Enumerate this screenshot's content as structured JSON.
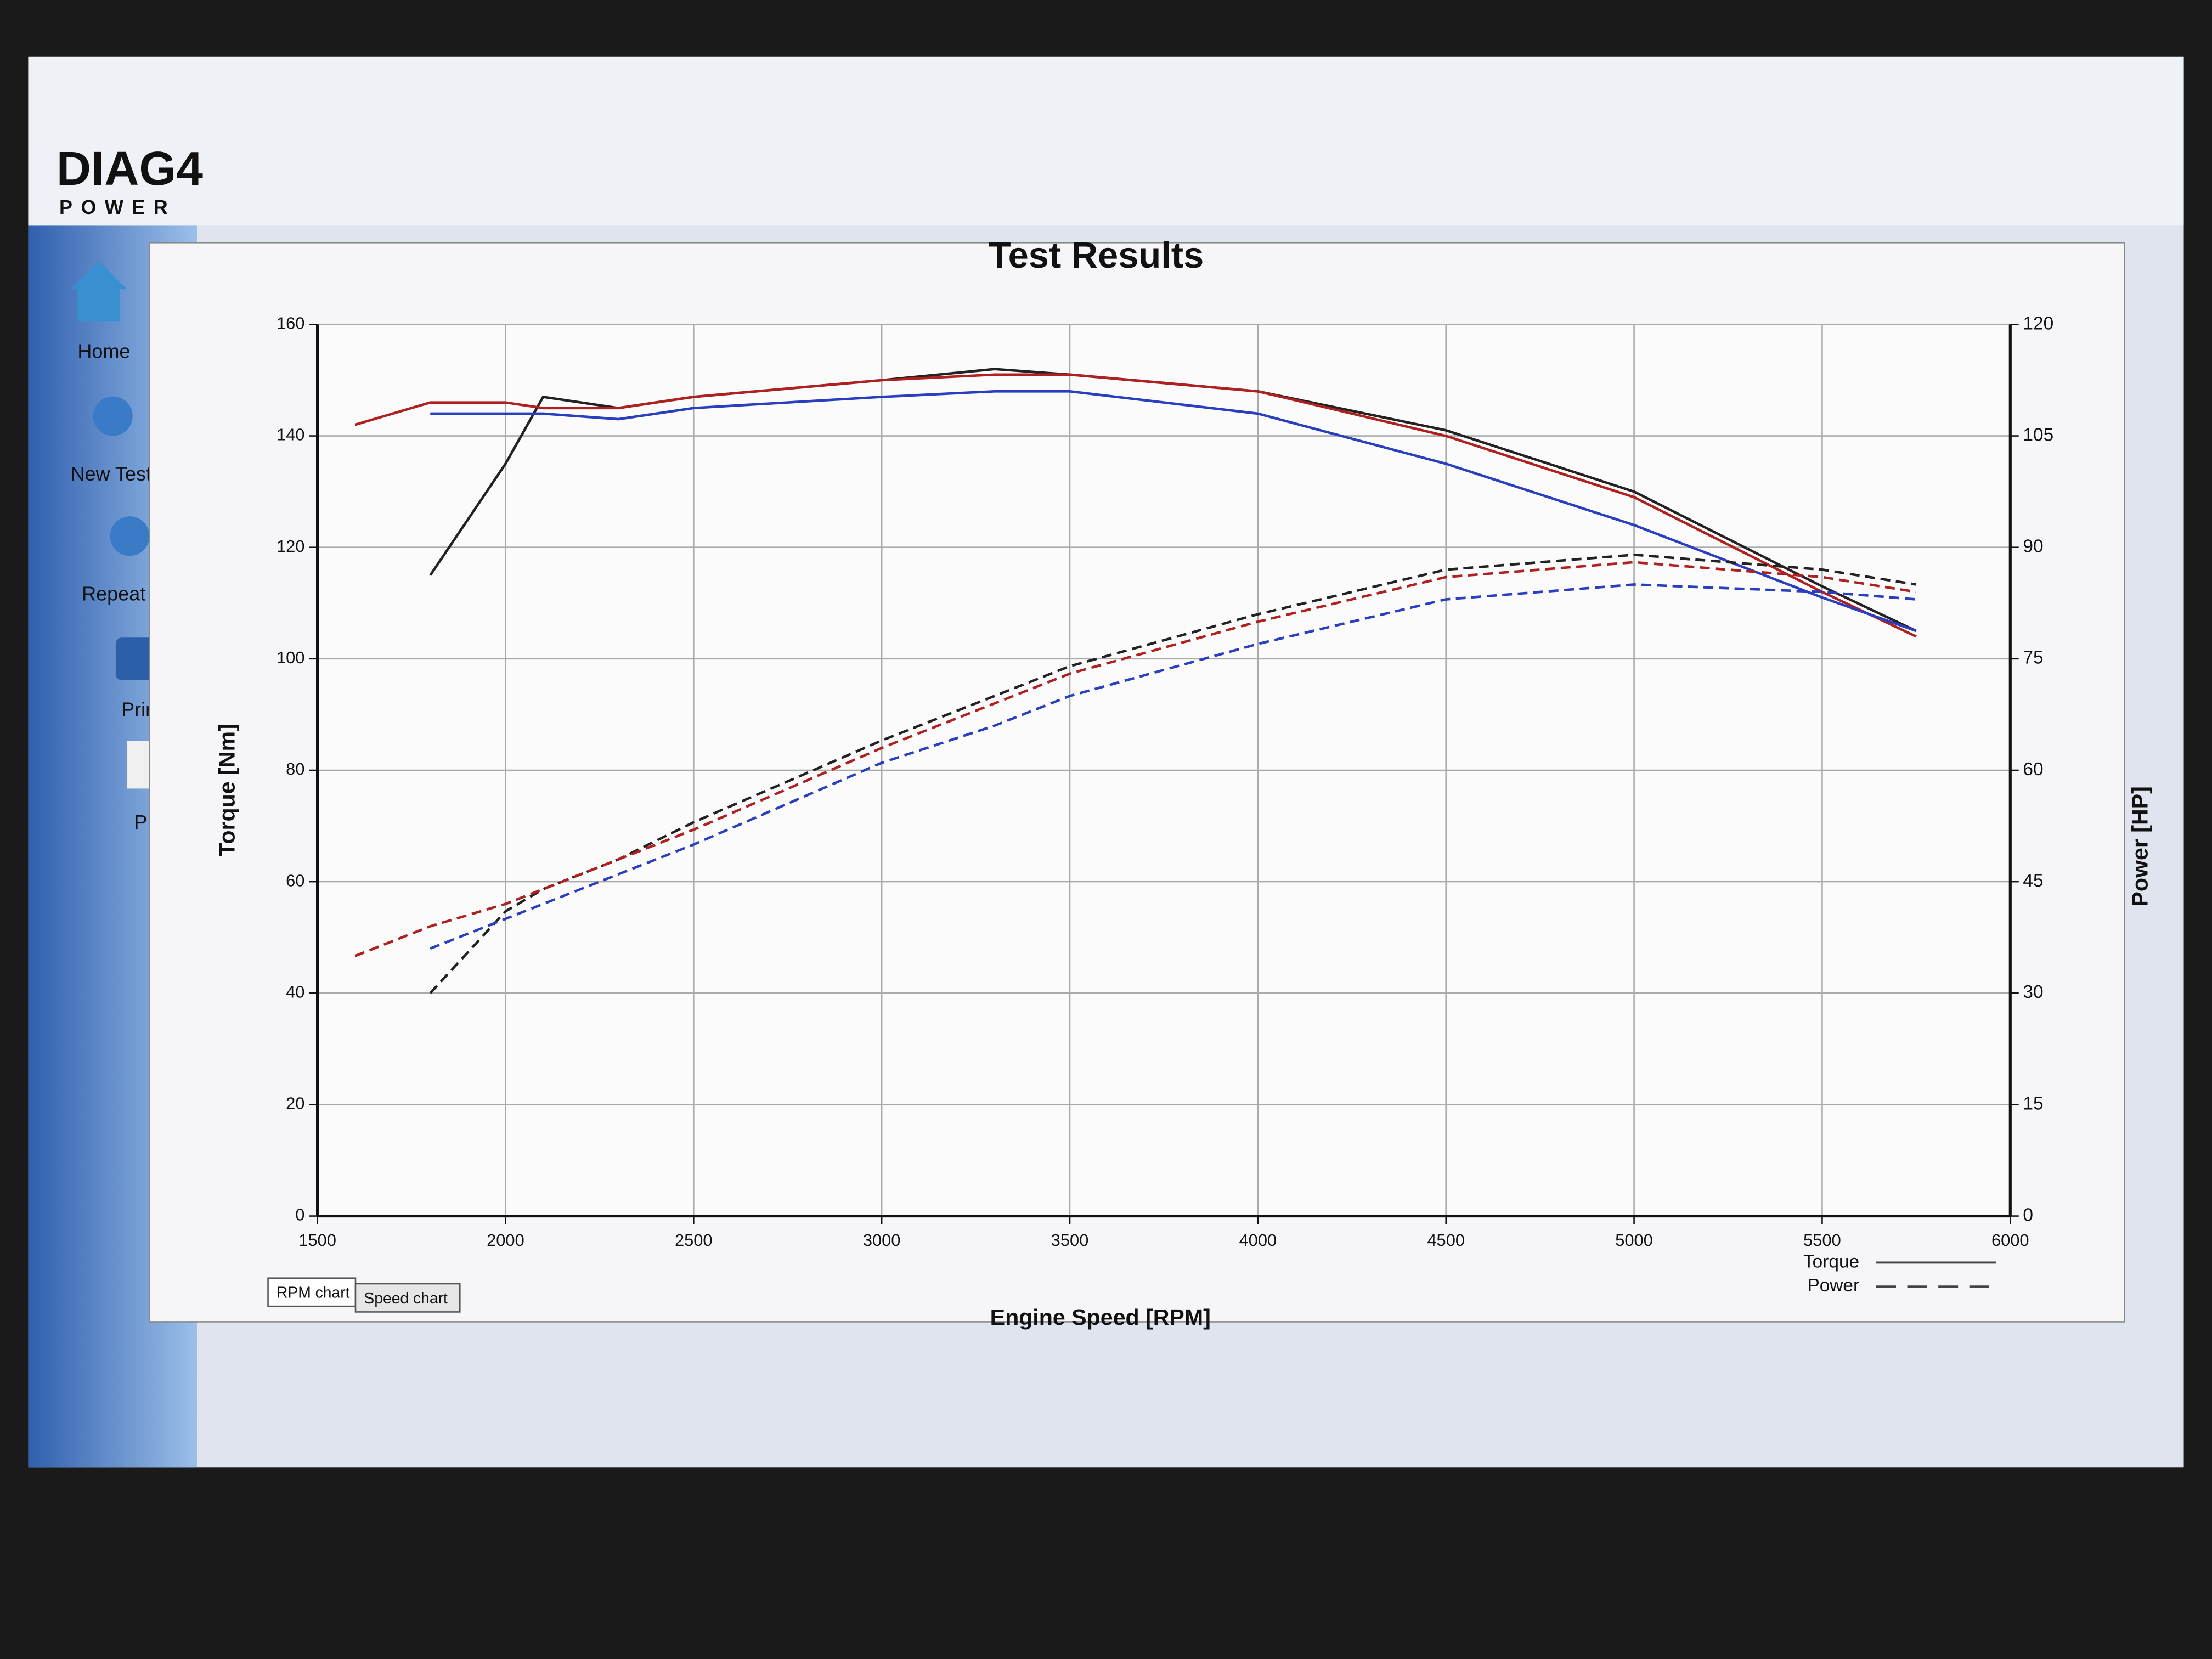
{
  "app": {
    "logo": "DIAG4",
    "logo_sub": "POWER",
    "menu": [
      "Home",
      "New Test",
      "Repeat",
      "Print",
      "PDF"
    ],
    "tabs": [
      "RPM chart",
      "Speed chart"
    ]
  },
  "chart_data": {
    "type": "line",
    "title": "Test Results",
    "x_label": "Engine Speed [RPM]",
    "y_label": "Torque [Nm]",
    "y2_label": "Power [HP]",
    "x": [
      1600,
      1800,
      2000,
      2100,
      2300,
      2500,
      3000,
      3300,
      3500,
      4000,
      4500,
      5000,
      5500,
      5750
    ],
    "xlim": [
      1500,
      6000
    ],
    "xticks": [
      1500,
      2000,
      2500,
      3000,
      3500,
      4000,
      4500,
      5000,
      5500,
      6000
    ],
    "ylim": [
      0,
      160
    ],
    "yticks": [
      0,
      20,
      40,
      60,
      80,
      100,
      120,
      140,
      160
    ],
    "y2lim": [
      0,
      120
    ],
    "y2ticks": [
      0,
      15,
      30,
      45,
      60,
      75,
      90,
      105,
      120
    ],
    "grid": true,
    "legend": "lower right",
    "series": [
      {
        "name": "Torque",
        "color": "#222222",
        "dash": false,
        "values": [
          null,
          115,
          135,
          147,
          145,
          147,
          150,
          152,
          151,
          148,
          141,
          130,
          113,
          105
        ]
      },
      {
        "name": "Torque",
        "color": "#b02020",
        "dash": false,
        "values": [
          142,
          146,
          146,
          145,
          145,
          147,
          150,
          151,
          151,
          148,
          140,
          129,
          112,
          104
        ]
      },
      {
        "name": "Torque",
        "color": "#2a3fc0",
        "dash": false,
        "values": [
          null,
          144,
          144,
          144,
          143,
          145,
          147,
          148,
          148,
          144,
          135,
          124,
          111,
          105
        ]
      },
      {
        "name": "Power",
        "color": "#222222",
        "dash": true,
        "axis": "y2",
        "values": [
          null,
          30,
          41,
          44,
          48,
          53,
          64,
          70,
          74,
          81,
          87,
          89,
          87,
          85
        ]
      },
      {
        "name": "Power",
        "color": "#b02020",
        "dash": true,
        "axis": "y2",
        "values": [
          35,
          39,
          42,
          44,
          48,
          52,
          63,
          69,
          73,
          80,
          86,
          88,
          86,
          84
        ]
      },
      {
        "name": "Power",
        "color": "#2a3fc0",
        "dash": true,
        "axis": "y2",
        "values": [
          null,
          36,
          40,
          42,
          46,
          50,
          61,
          66,
          70,
          77,
          83,
          85,
          84,
          83
        ]
      }
    ]
  }
}
